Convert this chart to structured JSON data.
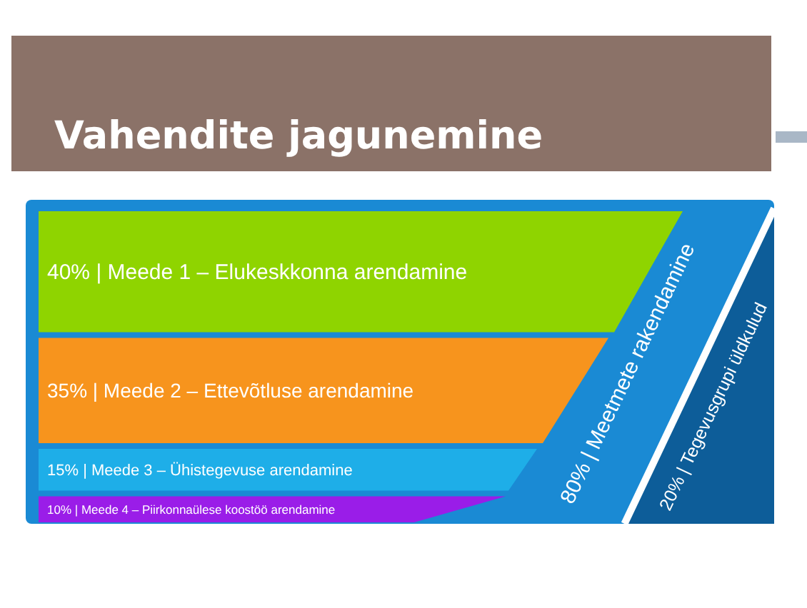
{
  "chart_data": {
    "type": "other",
    "title": "Vahendite jagunemine",
    "categories": [
      "| Meede 1 – Elukeskkonna arendamine",
      "| Meede 2 – Ettevõtluse arendamine",
      "| Meede 3 – Ühistegevuse arendamine",
      "| Meede 4 – Piirkonnaülese koostöö arendamine",
      "| Meetmete rakendamine",
      "| Tegevusgrupi üldkulud"
    ],
    "value_labels": [
      "40%",
      "35%",
      "15%",
      "10%",
      "80%",
      "20%"
    ],
    "values": [
      40,
      35,
      15,
      10,
      80,
      20
    ],
    "colors": [
      "#8fd400",
      "#f7941d",
      "#1eaee8",
      "#9a1de8",
      "#1a8ad4",
      "#0d5d99"
    ]
  }
}
